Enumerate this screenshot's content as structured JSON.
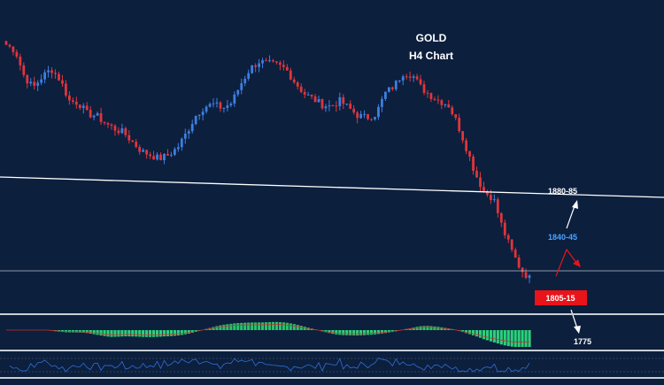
{
  "title": {
    "line1": "GOLD",
    "line2": "H4 Chart"
  },
  "colors": {
    "background": "#0c1f3d",
    "bull_candle": "#3d7fe0",
    "bear_candle": "#e0353b",
    "trendline": "#ffffff",
    "support_line": "#b9c3d2",
    "label_white": "#ffffff",
    "label_blue": "#4aa3ff",
    "label_box": "#e8141a",
    "macd_hist_up": "#26c46b",
    "macd_hist_down": "#2bd17a",
    "signal_line": "#c9302c",
    "rsi_line": "#2f6fd6"
  },
  "annotations": [
    {
      "id": "target-1880-85",
      "text": "1880-85",
      "style": "white"
    },
    {
      "id": "target-1840-45",
      "text": "1840-45",
      "style": "blue"
    },
    {
      "id": "zone-1805-15",
      "text": "1805-15",
      "style": "red-box"
    },
    {
      "id": "target-1775",
      "text": "1775",
      "style": "white"
    }
  ],
  "chart_data": {
    "type": "candlestick",
    "symbol": "GOLD",
    "timeframe": "H4",
    "series": [
      {
        "name": "price",
        "close_path": [
          1935,
          1932,
          1918,
          1912,
          1918,
          1922,
          1916,
          1905,
          1904,
          1898,
          1897,
          1893,
          1890,
          1888,
          1883,
          1878,
          1876,
          1874,
          1876,
          1880,
          1888,
          1897,
          1902,
          1903,
          1901,
          1904,
          1914,
          1922,
          1926,
          1925,
          1924,
          1922,
          1915,
          1909,
          1906,
          1903,
          1902,
          1905,
          1901,
          1897,
          1896,
          1898,
          1909,
          1913,
          1920,
          1919,
          1912,
          1908,
          1905,
          1903,
          1893,
          1880,
          1866,
          1856,
          1853,
          1837,
          1825,
          1815,
          1810
        ]
      }
    ],
    "indicators": [
      "MACD histogram",
      "RSI"
    ],
    "grid": false
  }
}
